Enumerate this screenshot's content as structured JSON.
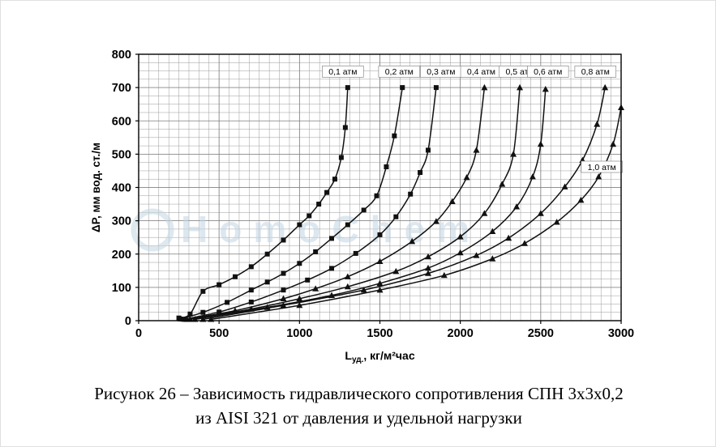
{
  "figure": {
    "caption_line1": "Рисунок 26 – Зависимость гидравлического сопротивления СПН 3х3х0,2",
    "caption_line2": "из AISI 321 от давления и удельной нагрузки"
  },
  "watermark": {
    "text": "HomoChem",
    "color": "#c3d5e2"
  },
  "chart_data": {
    "type": "line",
    "title": "",
    "xlabel": {
      "main": "L",
      "sub": "уд.",
      "rest": ", кг/м²час"
    },
    "ylabel": "ΔP, мм вод. ст./м",
    "xlim": [
      0,
      3000
    ],
    "ylim": [
      0,
      800
    ],
    "x_major": 500,
    "x_minor": 62.5,
    "y_major": 100,
    "y_minor": 25,
    "x_ticks": [
      "0",
      "500",
      "1000",
      "1500",
      "2000",
      "2500",
      "3000"
    ],
    "y_ticks": [
      "0",
      "100",
      "200",
      "300",
      "400",
      "500",
      "600",
      "700",
      "800"
    ],
    "grid": true,
    "legend_position": "inline-labels",
    "series": [
      {
        "name": "0,1 атм",
        "pressure_atm": 0.1,
        "marker": "square",
        "label_at": [
          1270,
          748
        ],
        "points": [
          [
            250,
            8
          ],
          [
            320,
            20
          ],
          [
            400,
            88
          ],
          [
            500,
            108
          ],
          [
            600,
            132
          ],
          [
            700,
            162
          ],
          [
            800,
            200
          ],
          [
            900,
            242
          ],
          [
            1000,
            288
          ],
          [
            1060,
            315
          ],
          [
            1120,
            350
          ],
          [
            1170,
            385
          ],
          [
            1220,
            425
          ],
          [
            1260,
            490
          ],
          [
            1285,
            580
          ],
          [
            1300,
            700
          ]
        ]
      },
      {
        "name": "0,2 атм",
        "pressure_atm": 0.2,
        "marker": "square",
        "label_at": [
          1620,
          748
        ],
        "points": [
          [
            260,
            5
          ],
          [
            400,
            25
          ],
          [
            550,
            55
          ],
          [
            700,
            92
          ],
          [
            800,
            116
          ],
          [
            900,
            142
          ],
          [
            1000,
            172
          ],
          [
            1100,
            207
          ],
          [
            1200,
            247
          ],
          [
            1300,
            288
          ],
          [
            1400,
            332
          ],
          [
            1480,
            375
          ],
          [
            1540,
            462
          ],
          [
            1590,
            555
          ],
          [
            1640,
            700
          ]
        ]
      },
      {
        "name": "0,3 атм",
        "pressure_atm": 0.3,
        "marker": "square",
        "label_at": [
          1880,
          748
        ],
        "points": [
          [
            280,
            4
          ],
          [
            500,
            26
          ],
          [
            700,
            56
          ],
          [
            900,
            92
          ],
          [
            1050,
            122
          ],
          [
            1200,
            157
          ],
          [
            1350,
            202
          ],
          [
            1500,
            258
          ],
          [
            1600,
            312
          ],
          [
            1690,
            380
          ],
          [
            1750,
            445
          ],
          [
            1800,
            512
          ],
          [
            1850,
            700
          ]
        ]
      },
      {
        "name": "0,4 атм",
        "pressure_atm": 0.4,
        "marker": "triangle",
        "label_at": [
          2130,
          748
        ],
        "points": [
          [
            300,
            4
          ],
          [
            600,
            30
          ],
          [
            900,
            66
          ],
          [
            1100,
            96
          ],
          [
            1300,
            132
          ],
          [
            1500,
            178
          ],
          [
            1700,
            238
          ],
          [
            1850,
            298
          ],
          [
            1950,
            358
          ],
          [
            2040,
            430
          ],
          [
            2100,
            512
          ],
          [
            2150,
            700
          ]
        ]
      },
      {
        "name": "0,5 атм",
        "pressure_atm": 0.5,
        "marker": "triangle",
        "label_at": [
          2370,
          748
        ],
        "points": [
          [
            320,
            4
          ],
          [
            700,
            35
          ],
          [
            1000,
            66
          ],
          [
            1300,
            102
          ],
          [
            1600,
            148
          ],
          [
            1800,
            192
          ],
          [
            2000,
            252
          ],
          [
            2150,
            322
          ],
          [
            2260,
            410
          ],
          [
            2330,
            500
          ],
          [
            2370,
            700
          ]
        ]
      },
      {
        "name": "0,6 атм",
        "pressure_atm": 0.6,
        "marker": "triangle",
        "label_at": [
          2545,
          748
        ],
        "points": [
          [
            350,
            4
          ],
          [
            800,
            40
          ],
          [
            1200,
            76
          ],
          [
            1500,
            112
          ],
          [
            1800,
            158
          ],
          [
            2000,
            204
          ],
          [
            2200,
            268
          ],
          [
            2350,
            342
          ],
          [
            2450,
            432
          ],
          [
            2500,
            530
          ],
          [
            2530,
            695
          ]
        ]
      },
      {
        "name": "0,8 атм",
        "pressure_atm": 0.8,
        "marker": "triangle",
        "label_at": [
          2840,
          748
        ],
        "points": [
          [
            400,
            4
          ],
          [
            900,
            46
          ],
          [
            1400,
            92
          ],
          [
            1800,
            142
          ],
          [
            2100,
            196
          ],
          [
            2300,
            248
          ],
          [
            2500,
            322
          ],
          [
            2650,
            402
          ],
          [
            2760,
            482
          ],
          [
            2850,
            590
          ],
          [
            2900,
            700
          ]
        ]
      },
      {
        "name": "1,0 атм",
        "pressure_atm": 1.0,
        "marker": "triangle",
        "label_at": [
          2880,
          462
        ],
        "points": [
          [
            450,
            4
          ],
          [
            1000,
            46
          ],
          [
            1500,
            92
          ],
          [
            1900,
            136
          ],
          [
            2200,
            186
          ],
          [
            2400,
            232
          ],
          [
            2600,
            296
          ],
          [
            2750,
            362
          ],
          [
            2860,
            432
          ],
          [
            2950,
            530
          ],
          [
            3000,
            640
          ]
        ]
      }
    ]
  }
}
